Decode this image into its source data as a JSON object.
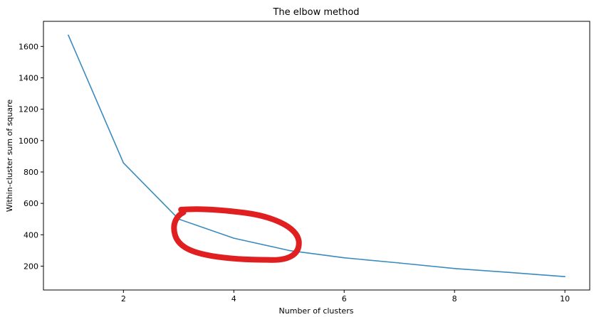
{
  "chart_data": {
    "type": "line",
    "title": "The elbow method",
    "xlabel": "Number of clusters",
    "ylabel": "Within-cluster sum of square",
    "xlim": [
      0.55,
      10.45
    ],
    "ylim": [
      48,
      1760
    ],
    "xticks": [
      2,
      4,
      6,
      8,
      10
    ],
    "yticks": [
      200,
      400,
      600,
      800,
      1000,
      1200,
      1400,
      1600
    ],
    "grid": false,
    "series": [
      {
        "color": "#3a8ac0",
        "x": [
          1,
          2,
          3,
          4,
          5,
          6,
          7,
          8,
          9,
          10
        ],
        "y": [
          1672,
          858,
          500,
          378,
          300,
          253,
          220,
          185,
          160,
          133
        ]
      }
    ],
    "annotations": [
      {
        "type": "hand-drawn-ellipse",
        "color": "#e02020",
        "x_range": [
          3,
          5.2
        ],
        "y_range": [
          230,
          570
        ]
      }
    ]
  }
}
